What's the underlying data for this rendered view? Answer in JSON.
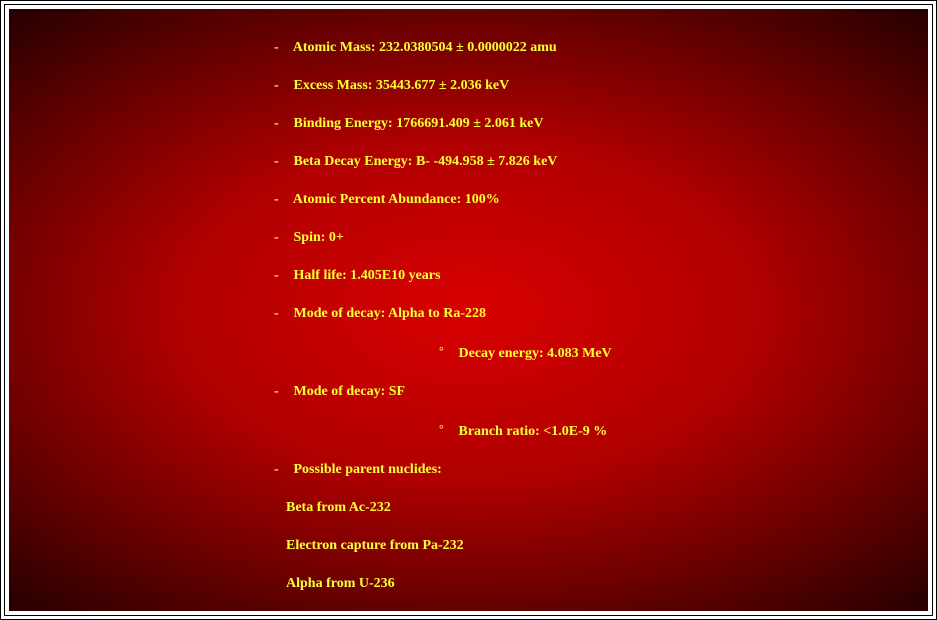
{
  "colors": {
    "text": "#ffff33",
    "bg_center": "#d80000",
    "bg_edge": "#050000",
    "frame": "#000000",
    "page": "#ffffff"
  },
  "typography": {
    "family": "Georgia, Times New Roman, serif",
    "size_pt": 11,
    "weight": "bold"
  },
  "bullets": {
    "dash": "-",
    "deg": "°"
  },
  "items": {
    "atomic_mass": "Atomic Mass: 232.0380504 ± 0.0000022 amu",
    "excess_mass": "Excess Mass: 35443.677 ± 2.036 keV",
    "binding_energy": "Binding Energy: 1766691.409 ± 2.061 keV",
    "beta_decay_energy": "Beta Decay Energy: B- -494.958 ± 7.826 keV",
    "abundance": "Atomic Percent Abundance: 100%",
    "spin": "Spin: 0+",
    "half_life": "Half life: 1.405E10 years",
    "decay_alpha": "Mode of decay: Alpha to Ra-228",
    "decay_alpha_energy": "Decay energy: 4.083 MeV",
    "decay_sf": "Mode of decay: SF",
    "decay_sf_branch": "Branch ratio: <1.0E-9 %",
    "parents_label": "Possible parent nuclides:",
    "parent_1": "Beta from Ac-232",
    "parent_2": "Electron capture from Pa-232",
    "parent_3": "Alpha from U-236"
  }
}
